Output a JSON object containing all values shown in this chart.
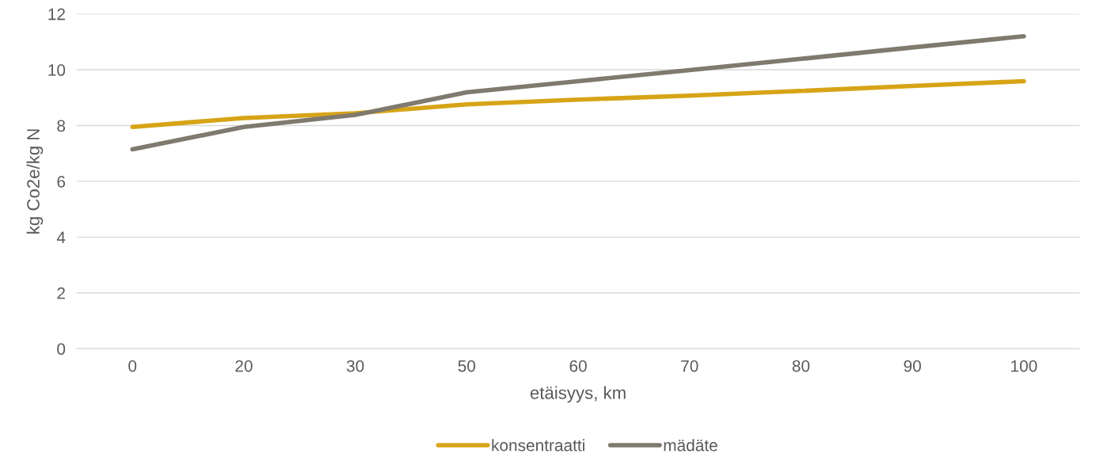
{
  "chart_data": {
    "type": "line",
    "xlabel": "etäisyys, km",
    "ylabel": "kg Co2e/kg N",
    "categories": [
      "0",
      "20",
      "30",
      "50",
      "60",
      "70",
      "80",
      "90",
      "100"
    ],
    "series": [
      {
        "name": "konsentraatti",
        "color": "#d6a416",
        "values": [
          7.95,
          8.27,
          8.44,
          8.76,
          8.93,
          9.07,
          9.24,
          9.42,
          9.59
        ]
      },
      {
        "name": "mädäte",
        "color": "#7f7a6e",
        "values": [
          7.15,
          7.95,
          8.38,
          9.19,
          9.59,
          9.99,
          10.39,
          10.8,
          11.2
        ]
      }
    ],
    "ylim": [
      0,
      12
    ],
    "yticks": [
      0,
      2,
      4,
      6,
      8,
      10,
      12
    ],
    "grid": "y",
    "legend": "bottom",
    "marker": "none",
    "line_style": "solid"
  }
}
